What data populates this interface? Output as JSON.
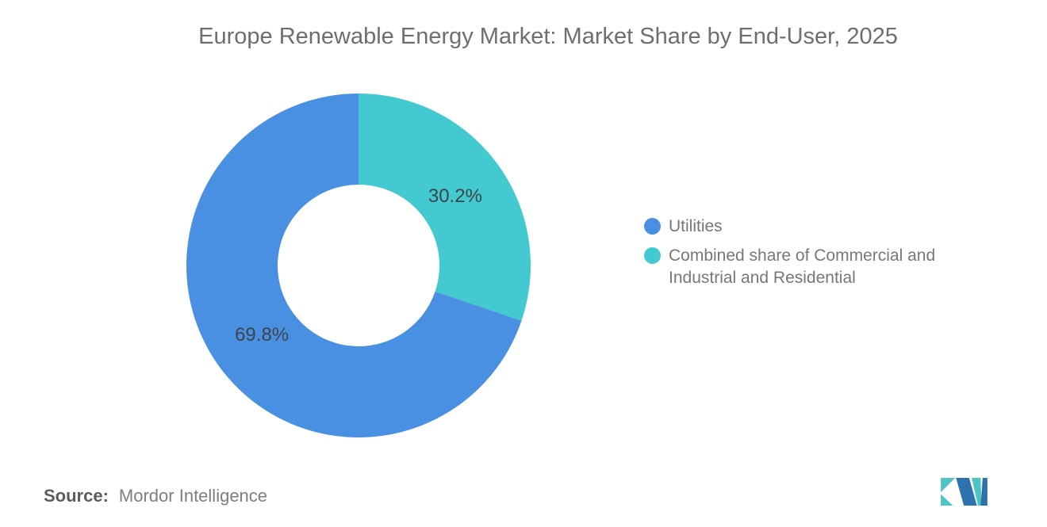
{
  "header": {
    "title": "Europe Renewable Energy Market: Market Share by End-User, 2025"
  },
  "chart_data": {
    "type": "pie",
    "subtype": "donut",
    "title": "Europe Renewable Energy Market: Market Share by End-User, 2025",
    "start_angle": "top",
    "clockwise": false,
    "series": [
      {
        "name": "Utilities",
        "value": 69.8,
        "data_label": "69.8%",
        "color": "#4A90E2"
      },
      {
        "name": "Combined share of Commercial and Industrial and Residential",
        "value": 30.2,
        "data_label": "30.2%",
        "color": "#43CAD1"
      }
    ],
    "legend_position": "right",
    "data_label_color": "#3F444A",
    "grid": false
  },
  "footer": {
    "source_label": "Source:",
    "source_value": "Mordor Intelligence"
  },
  "logo": {
    "name": "mordor-intelligence-logo",
    "teal": "#4EC4C4",
    "blue": "#2E72AD"
  }
}
